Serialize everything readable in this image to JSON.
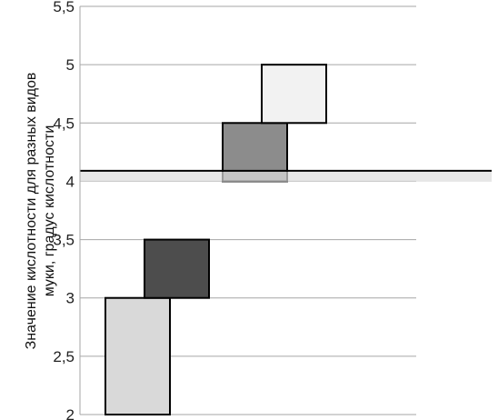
{
  "chart_data": {
    "type": "floating-bar",
    "title": "",
    "xlabel": "",
    "ylabel_lines": [
      "Значение кислотности для разных видов",
      "муки, градус кислотности"
    ],
    "ylim": [
      2,
      5.5
    ],
    "yticks": [
      {
        "value": 2,
        "label": "2"
      },
      {
        "value": 2.5,
        "label": "2,5"
      },
      {
        "value": 3,
        "label": "3"
      },
      {
        "value": 3.5,
        "label": "3,5"
      },
      {
        "value": 4,
        "label": "4"
      },
      {
        "value": 4.5,
        "label": "4,5"
      },
      {
        "value": 5,
        "label": "5"
      },
      {
        "value": 5.5,
        "label": "5,5"
      }
    ],
    "grid": true,
    "bars": [
      {
        "slot": 1,
        "low": 2.0,
        "high": 3.0,
        "fill": "#d9d9d9"
      },
      {
        "slot": 2,
        "low": 3.0,
        "high": 3.5,
        "fill": "#4d4d4d"
      },
      {
        "slot": 4,
        "low": 4.0,
        "high": 4.5,
        "fill": "#8c8c8c"
      },
      {
        "slot": 5,
        "low": 4.5,
        "high": 5.0,
        "fill": "#f2f2f2"
      }
    ],
    "reference_line": {
      "value": 4.09,
      "color": "#000000"
    }
  }
}
